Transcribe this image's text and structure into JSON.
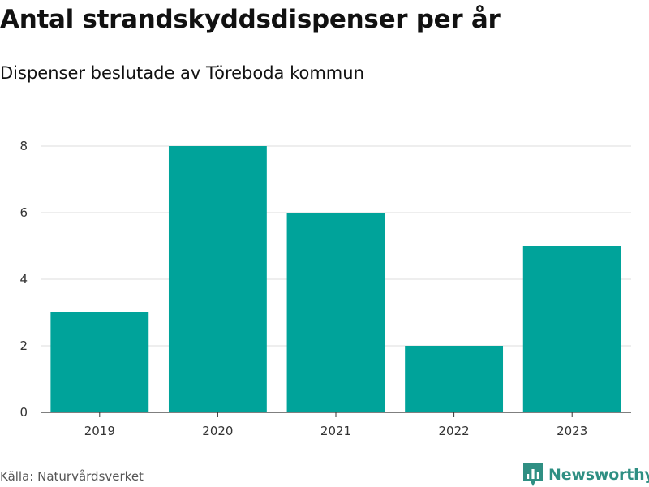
{
  "header": {
    "title": "Antal strandskyddsdispenser per år",
    "subtitle": "Dispenser beslutade av Töreboda kommun"
  },
  "footer": {
    "source": "Källa: Naturvårdsverket",
    "brand": "Newsworthy"
  },
  "colors": {
    "bar": "#00A39A",
    "grid": "#dddddd",
    "axis": "#333333",
    "brand": "#2f8f83"
  },
  "chart_data": {
    "type": "bar",
    "categories": [
      "2019",
      "2020",
      "2021",
      "2022",
      "2023"
    ],
    "values": [
      3,
      8,
      6,
      2,
      5
    ],
    "ylim": [
      0,
      8
    ],
    "yticks": [
      0,
      2,
      4,
      6,
      8
    ],
    "grid": true,
    "legend": "none"
  }
}
